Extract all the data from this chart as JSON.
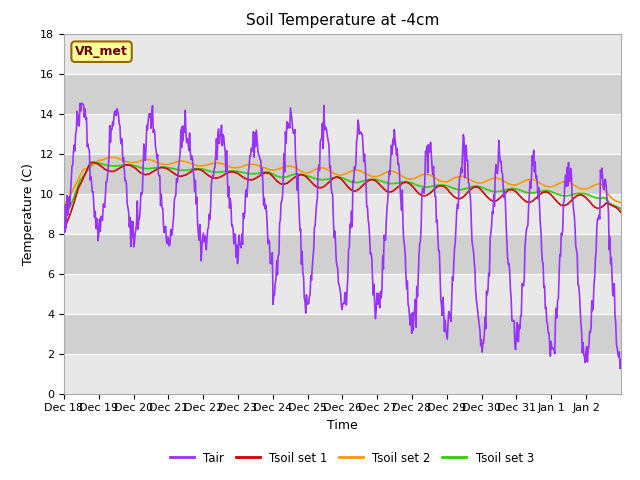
{
  "title": "Soil Temperature at -4cm",
  "xlabel": "Time",
  "ylabel": "Temperature (C)",
  "ylim": [
    0,
    18
  ],
  "background_color": "#ffffff",
  "plot_bg_color": "#e8e8e8",
  "band_color_dark": "#d0d0d0",
  "band_color_light": "#e8e8e8",
  "grid_color": "#ffffff",
  "colors": {
    "Tair": "#9933ff",
    "Tsoil1": "#cc0000",
    "Tsoil2": "#ff9900",
    "Tsoil3": "#33cc00"
  },
  "legend_labels": [
    "Tair",
    "Tsoil set 1",
    "Tsoil set 2",
    "Tsoil set 3"
  ],
  "legend_colors": [
    "#9933ff",
    "#cc0000",
    "#ff9900",
    "#33cc00"
  ],
  "annotation_text": "VR_met",
  "annotation_box_color": "#ffff99",
  "annotation_border_color": "#996600",
  "tick_labels": [
    "Dec 18",
    "Dec 19",
    "Dec 20",
    "Dec 21",
    "Dec 22",
    "Dec 23",
    "Dec 24",
    "Dec 25",
    "Dec 26",
    "Dec 27",
    "Dec 28",
    "Dec 29",
    "Dec 30",
    "Dec 31",
    "Jan 1",
    "Jan 2"
  ],
  "title_fontsize": 11,
  "axis_label_fontsize": 9,
  "tick_fontsize": 8,
  "line_width": 1.2
}
